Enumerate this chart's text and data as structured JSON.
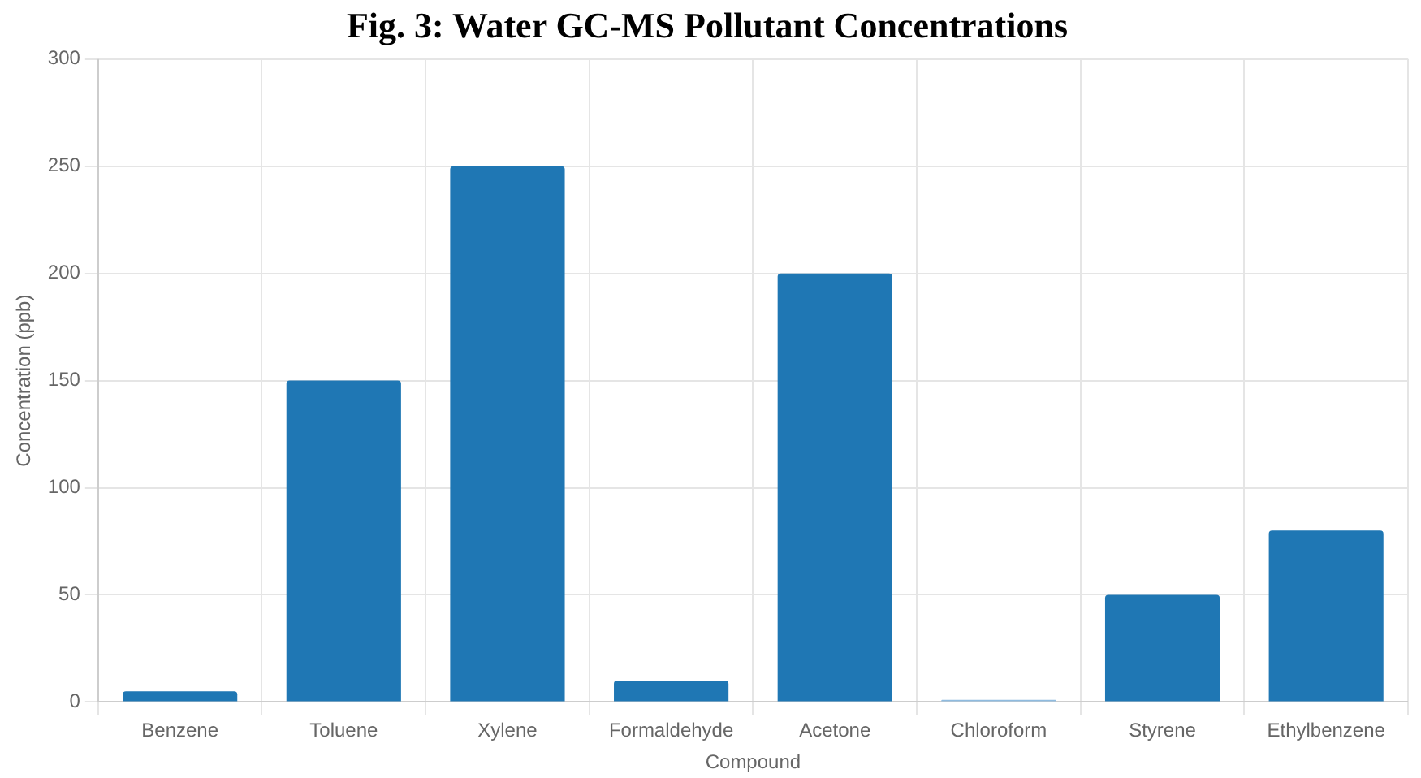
{
  "chart_data": {
    "type": "bar",
    "title": "Fig. 3: Water GC-MS Pollutant Concentrations",
    "xlabel": "Compound",
    "ylabel": "Concentration (ppb)",
    "categories": [
      "Benzene",
      "Toluene",
      "Xylene",
      "Formaldehyde",
      "Acetone",
      "Chloroform",
      "Styrene",
      "Ethylbenzene"
    ],
    "values": [
      5,
      150,
      250,
      10,
      200,
      1,
      50,
      80
    ],
    "colors": [
      "#1f77b4",
      "#1f77b4",
      "#1f77b4",
      "#1f77b4",
      "#1f77b4",
      "#8fbbdf",
      "#1f77b4",
      "#1f77b4"
    ],
    "ylim": [
      0,
      300
    ],
    "yticks": [
      0,
      50,
      100,
      150,
      200,
      250,
      300
    ],
    "grid": true,
    "legend": false
  }
}
